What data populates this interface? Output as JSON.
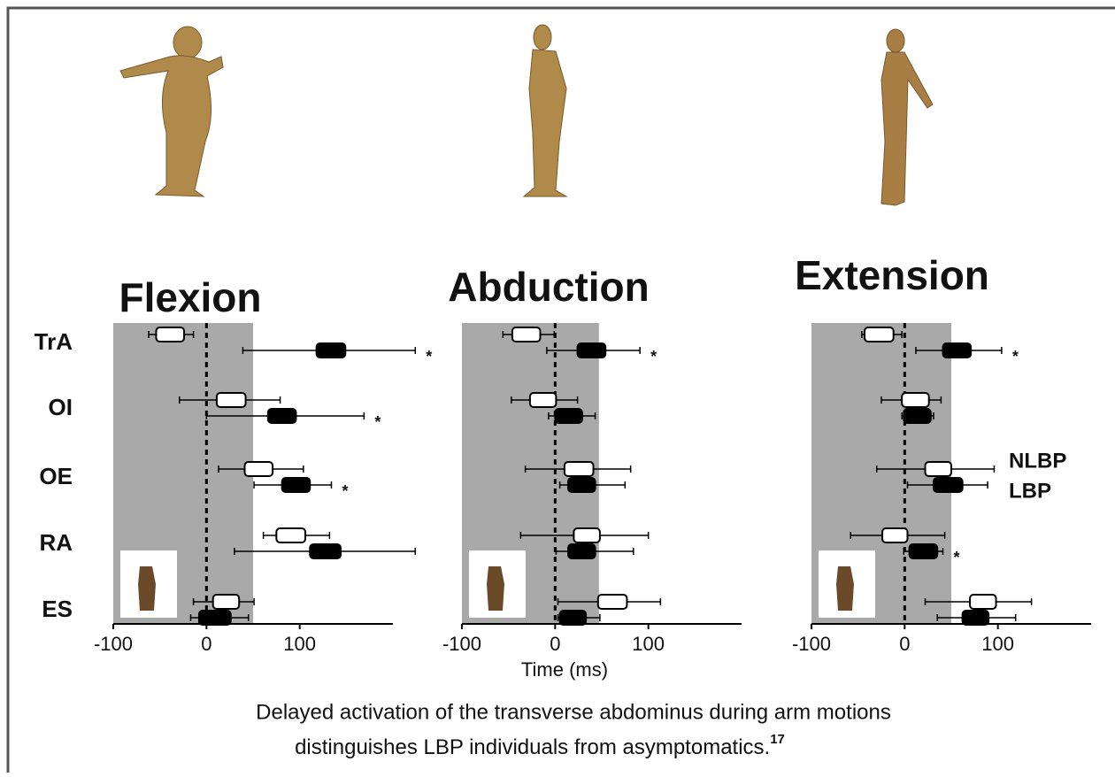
{
  "chart_data": [
    {
      "type": "boxplot",
      "title": "Flexion",
      "categories": [
        "TrA",
        "OI",
        "OE",
        "RA",
        "ES"
      ],
      "series": [
        {
          "color": "#ffffff",
          "whisker_low": [
            -62,
            -29,
            13,
            61,
            -14
          ],
          "box_low": [
            -54,
            11,
            41,
            75,
            7
          ],
          "box_high": [
            -24,
            42,
            71,
            106,
            35
          ],
          "whisker_high": [
            -14,
            79,
            104,
            132,
            51
          ]
        },
        {
          "color": "#000000",
          "whisker_low": [
            39,
            0,
            51,
            30,
            -17
          ],
          "box_low": [
            118,
            66,
            81,
            111,
            -8
          ],
          "box_high": [
            149,
            96,
            111,
            144,
            26
          ],
          "whisker_high": [
            224,
            169,
            134,
            224,
            45
          ]
        }
      ],
      "significance_mark": "*",
      "significant": [
        true,
        true,
        true,
        false,
        false
      ],
      "shaded_range": [
        -100,
        50
      ],
      "reference_line": 0,
      "xlim": [
        -100,
        200
      ],
      "xticks": [
        -100,
        0,
        100
      ]
    },
    {
      "type": "boxplot",
      "title": "Abduction",
      "x_label": "Time (ms)",
      "categories": [
        null,
        null,
        null,
        null,
        null
      ],
      "series": [
        {
          "color": "#ffffff",
          "whisker_low": [
            -56,
            -47,
            -32,
            -37,
            3
          ],
          "box_low": [
            -46,
            -27,
            10,
            20,
            46
          ],
          "box_high": [
            -16,
            1,
            41,
            48,
            77
          ],
          "whisker_high": [
            -1,
            24,
            81,
            100,
            113
          ]
        },
        {
          "color": "#000000",
          "whisker_low": [
            -9,
            -7,
            5,
            1,
            3
          ],
          "box_low": [
            24,
            0,
            14,
            14,
            5
          ],
          "box_high": [
            54,
            29,
            43,
            43,
            33
          ],
          "whisker_high": [
            91,
            43,
            75,
            84,
            48
          ]
        }
      ],
      "significance_mark": "*",
      "significant": [
        true,
        false,
        false,
        false,
        false
      ],
      "shaded_range": [
        -100,
        47
      ],
      "reference_line": 0,
      "xlim": [
        -100,
        200
      ],
      "xticks": [
        -100,
        0,
        100
      ]
    },
    {
      "type": "boxplot",
      "title": "Extension",
      "categories": [
        null,
        null,
        null,
        null,
        null
      ],
      "series": [
        {
          "name": "NLBP",
          "color": "#ffffff",
          "whisker_low": [
            -46,
            -25,
            -30,
            -58,
            22
          ],
          "box_low": [
            -43,
            -3,
            22,
            -24,
            70
          ],
          "box_high": [
            -12,
            26,
            50,
            3,
            98
          ],
          "whisker_high": [
            -3,
            39,
            96,
            43,
            136
          ]
        },
        {
          "name": "LBP",
          "color": "#000000",
          "whisker_low": [
            12,
            -3,
            3,
            -1,
            35
          ],
          "box_low": [
            41,
            -1,
            31,
            5,
            62
          ],
          "box_high": [
            71,
            28,
            62,
            35,
            90
          ],
          "whisker_high": [
            104,
            31,
            89,
            41,
            119
          ]
        }
      ],
      "significance_mark": "*",
      "significant": [
        true,
        false,
        false,
        true,
        false
      ],
      "shaded_range": [
        -100,
        50
      ],
      "reference_line": 0,
      "xlim": [
        -100,
        200
      ],
      "xticks": [
        -100,
        0,
        100
      ],
      "legend": true
    }
  ],
  "caption": {
    "line1": "Delayed activation of the transverse abdominus during arm motions",
    "line2": "distinguishes LBP individuals from asymptomatics.",
    "superscript": "17"
  }
}
